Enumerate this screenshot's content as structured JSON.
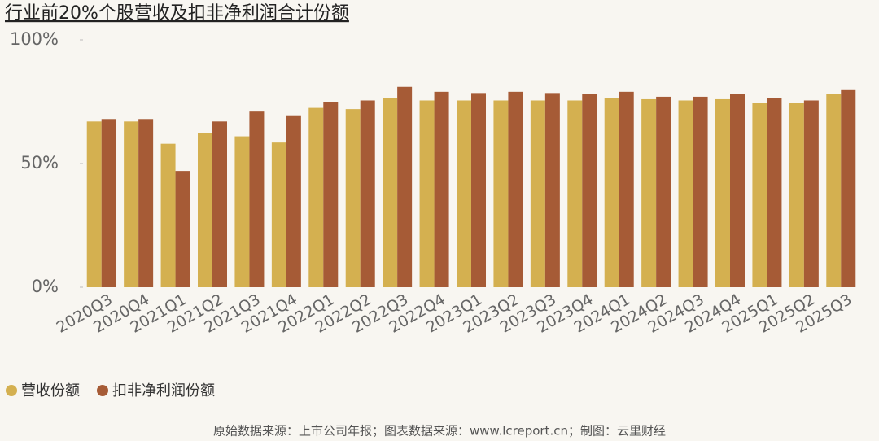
{
  "chart_data": {
    "type": "bar",
    "title": "行业前20%个股营收及扣非净利润合计份额",
    "source": "原始数据来源：上市公司年报；图表数据来源：www.lcreport.cn；制图：云里财经",
    "categories": [
      "2020Q3",
      "2020Q4",
      "2021Q1",
      "2021Q2",
      "2021Q3",
      "2021Q4",
      "2022Q1",
      "2022Q2",
      "2022Q3",
      "2022Q4",
      "2023Q1",
      "2023Q2",
      "2023Q3",
      "2023Q4",
      "2024Q1",
      "2024Q2",
      "2024Q3",
      "2024Q4",
      "2025Q1",
      "2025Q2",
      "2025Q3"
    ],
    "series": [
      {
        "name": "营收份额",
        "color": "#d4b050",
        "values": [
          67,
          67,
          58,
          62.5,
          61,
          58.5,
          72.5,
          72,
          76.5,
          75.5,
          75.5,
          75.5,
          75.5,
          75.5,
          76.5,
          76,
          75.5,
          76,
          74.5,
          74.5,
          78
        ]
      },
      {
        "name": "扣非净利润份额",
        "color": "#a65b36",
        "values": [
          68,
          68,
          47,
          67,
          71,
          69.5,
          75,
          75.5,
          81,
          79,
          78.5,
          79,
          78.5,
          78,
          79,
          77,
          77,
          78,
          76.5,
          75.5,
          80
        ]
      }
    ],
    "ylim": [
      0,
      100
    ],
    "yticks": [
      {
        "value": 0,
        "label": "0%"
      },
      {
        "value": 50,
        "label": "50%"
      },
      {
        "value": 100,
        "label": "100%"
      }
    ],
    "legend": "bottom-left"
  }
}
